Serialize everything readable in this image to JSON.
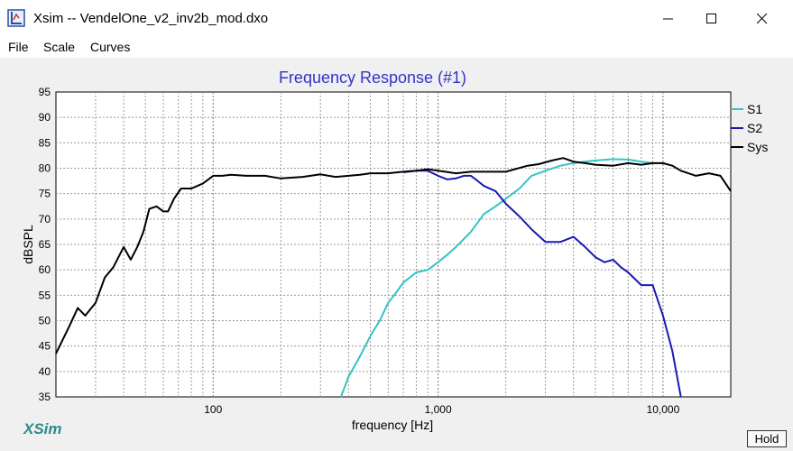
{
  "window": {
    "title": "Xsim -- VendelOne_v2_inv2b_mod.dxo"
  },
  "menu": {
    "file": "File",
    "scale": "Scale",
    "curves": "Curves"
  },
  "logo": "XSim",
  "hold_label": "Hold",
  "colors": {
    "title": "#3333cc",
    "s1": "#33c4c4",
    "s2": "#1a1ab3",
    "sys": "#000000",
    "logo": "#2e8b8b"
  },
  "chart_data": {
    "type": "line",
    "title": "Frequency Response (#1)",
    "xlabel": "frequency [Hz]",
    "ylabel": "dBSPL",
    "xscale": "log",
    "xlim": [
      20,
      20000
    ],
    "ylim": [
      35,
      95
    ],
    "yticks": [
      35,
      40,
      45,
      50,
      55,
      60,
      65,
      70,
      75,
      80,
      85,
      90,
      95
    ],
    "xtick_labels": [
      {
        "value": 100,
        "label": "100"
      },
      {
        "value": 1000,
        "label": "1,000"
      },
      {
        "value": 10000,
        "label": "10,000"
      }
    ],
    "grid": true,
    "legend": "right",
    "series": [
      {
        "name": "S1",
        "color": "#33c4c4",
        "x": [
          370,
          400,
          450,
          500,
          550,
          600,
          650,
          700,
          800,
          900,
          1000,
          1100,
          1200,
          1400,
          1600,
          1800,
          2000,
          2300,
          2600,
          3000,
          3500,
          4000,
          4500,
          5000,
          6000,
          7000,
          8000,
          9000,
          10000
        ],
        "y": [
          35,
          39,
          43,
          47,
          50,
          53.5,
          55.5,
          57.5,
          59.5,
          60,
          61.5,
          63,
          64.5,
          67.5,
          71,
          72.5,
          74,
          76,
          78.5,
          79.5,
          80.5,
          81,
          81.3,
          81.5,
          81.8,
          81.7,
          81.3,
          81,
          81
        ]
      },
      {
        "name": "S2",
        "color": "#1a1ab3",
        "x": [
          700,
          800,
          900,
          1000,
          1100,
          1200,
          1300,
          1400,
          1500,
          1600,
          1800,
          2000,
          2300,
          2600,
          3000,
          3500,
          4000,
          4500,
          5000,
          5500,
          6000,
          6500,
          7000,
          8000,
          9000,
          10000,
          11000,
          12000
        ],
        "y": [
          79.2,
          79.5,
          79.5,
          78.5,
          77.8,
          78,
          78.5,
          78.5,
          77.5,
          76.5,
          75.5,
          73,
          70.5,
          68,
          65.5,
          65.5,
          66.5,
          64.5,
          62.5,
          61.5,
          62,
          60.5,
          59.5,
          57,
          57,
          51,
          44,
          35
        ]
      },
      {
        "name": "Sys",
        "color": "#000000",
        "x": [
          20,
          23,
          25,
          27,
          30,
          33,
          36,
          40,
          43,
          46,
          49,
          52,
          56,
          60,
          63,
          67,
          72,
          80,
          90,
          100,
          110,
          120,
          140,
          170,
          200,
          250,
          300,
          350,
          400,
          450,
          500,
          600,
          700,
          800,
          900,
          1000,
          1200,
          1400,
          1700,
          2000,
          2500,
          2800,
          3200,
          3600,
          4000,
          4500,
          5000,
          6000,
          7000,
          8000,
          9000,
          10000,
          11000,
          12000,
          14000,
          16000,
          18000,
          20000
        ],
        "y": [
          43.5,
          49,
          52.5,
          51,
          53.5,
          58.5,
          60.5,
          64.5,
          62,
          64.5,
          67.5,
          72,
          72.5,
          71.5,
          71.5,
          74,
          76,
          76,
          77,
          78.5,
          78.5,
          78.7,
          78.5,
          78.5,
          78,
          78.3,
          78.8,
          78.3,
          78.5,
          78.7,
          79,
          79,
          79.3,
          79.5,
          79.8,
          79.5,
          79,
          79.3,
          79.3,
          79.3,
          80.5,
          80.8,
          81.5,
          82,
          81.3,
          81,
          80.7,
          80.5,
          81,
          80.7,
          81,
          81,
          80.5,
          79.5,
          78.5,
          79,
          78.5,
          75.5
        ]
      }
    ]
  }
}
